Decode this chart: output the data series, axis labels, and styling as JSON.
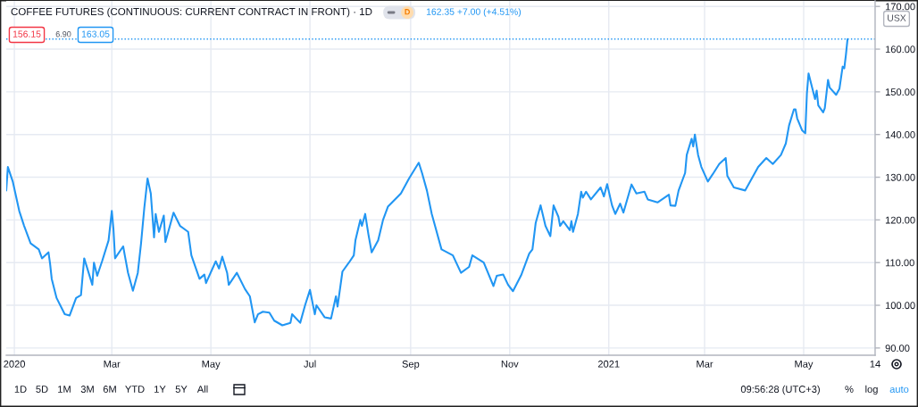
{
  "chart_data": {
    "type": "line",
    "title": "COFFEE FUTURES (CONTINUOUS: CURRENT CONTRACT IN FRONT) · 1D",
    "ylabel": "USX",
    "annotations": [
      "D",
      "162.35 +7.00 (+4.51%)",
      "156.15",
      "6.90",
      "163.05",
      "1D",
      "5D",
      "1M",
      "3M",
      "6M",
      "YTD",
      "1Y",
      "5Y",
      "All",
      "09:56:28 (UTC+3)",
      "%",
      "log",
      "auto"
    ],
    "x": [
      "2019-12-27",
      "2019-12-28",
      "2019-12-31",
      "2020-01-04",
      "2020-01-07",
      "2020-01-11",
      "2020-01-16",
      "2020-01-18",
      "2020-01-22",
      "2020-01-23",
      "2020-01-24",
      "2020-01-27",
      "2020-02-01",
      "2020-02-04",
      "2020-02-08",
      "2020-02-11",
      "2020-02-13",
      "2020-02-18",
      "2020-02-19",
      "2020-02-21",
      "2020-02-24",
      "2020-02-28",
      "2020-03-01",
      "2020-03-02",
      "2020-03-03",
      "2020-03-08",
      "2020-03-09",
      "2020-03-11",
      "2020-03-14",
      "2020-03-17",
      "2020-03-19",
      "2020-03-21",
      "2020-03-23",
      "2020-03-25",
      "2020-03-27",
      "2020-03-28",
      "2020-03-30",
      "2020-04-02",
      "2020-04-03",
      "2020-04-08",
      "2020-04-12",
      "2020-04-17",
      "2020-04-19",
      "2020-04-24",
      "2020-04-27",
      "2020-04-28",
      "2020-05-04",
      "2020-05-06",
      "2020-05-08",
      "2020-05-11",
      "2020-05-12",
      "2020-05-17",
      "2020-05-22",
      "2020-05-25",
      "2020-05-28",
      "2020-05-30",
      "2020-06-02",
      "2020-06-06",
      "2020-06-09",
      "2020-06-14",
      "2020-06-19",
      "2020-06-20",
      "2020-06-25",
      "2020-06-28",
      "2020-07-01",
      "2020-07-04",
      "2020-07-05",
      "2020-07-10",
      "2020-07-14",
      "2020-07-17",
      "2020-07-18",
      "2020-07-21",
      "2020-07-25",
      "2020-07-28",
      "2020-07-29",
      "2020-08-01",
      "2020-08-02",
      "2020-08-04",
      "2020-08-06",
      "2020-08-08",
      "2020-08-12",
      "2020-08-15",
      "2020-08-18",
      "2020-08-26",
      "2020-08-31",
      "2020-09-06",
      "2020-09-08",
      "2020-09-11",
      "2020-09-14",
      "2020-09-20",
      "2020-09-27",
      "2020-10-02",
      "2020-10-07",
      "2020-10-09",
      "2020-10-16",
      "2020-10-22",
      "2020-10-24",
      "2020-10-28",
      "2020-10-31",
      "2020-11-03",
      "2020-11-08",
      "2020-11-13",
      "2020-11-15",
      "2020-11-17",
      "2020-11-20",
      "2020-11-23",
      "2020-11-26",
      "2020-11-28",
      "2020-12-01",
      "2020-12-02",
      "2020-12-04",
      "2020-12-08",
      "2020-12-09",
      "2020-12-10",
      "2020-12-13",
      "2020-12-15",
      "2020-12-16",
      "2020-12-18",
      "2020-12-21",
      "2020-12-27",
      "2020-12-29",
      "2020-12-31",
      "2021-01-03",
      "2021-01-05",
      "2021-01-08",
      "2021-01-10",
      "2021-01-15",
      "2021-01-18",
      "2021-01-23",
      "2021-01-25",
      "2021-01-31",
      "2021-02-07",
      "2021-02-08",
      "2021-02-11",
      "2021-02-13",
      "2021-02-17",
      "2021-02-18",
      "2021-02-21",
      "2021-02-22",
      "2021-02-23",
      "2021-02-25",
      "2021-02-27",
      "2021-03-03",
      "2021-03-06",
      "2021-03-10",
      "2021-03-14",
      "2021-03-15",
      "2021-03-19",
      "2021-03-26",
      "2021-03-28",
      "2021-04-03",
      "2021-04-08",
      "2021-04-12",
      "2021-04-17",
      "2021-04-20",
      "2021-04-22",
      "2021-04-25",
      "2021-04-26",
      "2021-04-27",
      "2021-04-30",
      "2021-05-02",
      "2021-05-03",
      "2021-05-04",
      "2021-05-08",
      "2021-05-09",
      "2021-05-10",
      "2021-05-13",
      "2021-05-14",
      "2021-05-16",
      "2021-05-17",
      "2021-05-21",
      "2021-05-23",
      "2021-05-25",
      "2021-05-26",
      "2021-05-27",
      "2021-05-28"
    ],
    "series": [
      {
        "color": "#2196f3",
        "values": [
          126.9,
          132.4,
          129.0,
          122.1,
          118.6,
          114.5,
          113.1,
          111.0,
          112.4,
          109.7,
          106.2,
          101.7,
          97.9,
          97.6,
          101.7,
          102.4,
          111.0,
          104.8,
          110.0,
          106.9,
          110.3,
          115.2,
          122.1,
          117.9,
          111.0,
          113.8,
          111.7,
          107.6,
          103.4,
          107.6,
          114.5,
          122.8,
          129.7,
          126.2,
          115.9,
          121.4,
          117.2,
          121.0,
          114.8,
          121.7,
          118.6,
          117.2,
          111.7,
          106.2,
          107.2,
          105.2,
          110.3,
          108.6,
          111.4,
          107.6,
          104.8,
          107.6,
          103.8,
          102.1,
          96.0,
          97.9,
          98.5,
          98.3,
          96.4,
          95.3,
          95.9,
          97.9,
          95.9,
          100.0,
          103.6,
          97.9,
          100.0,
          97.2,
          96.9,
          102.1,
          99.7,
          107.9,
          110.0,
          111.7,
          115.2,
          120.0,
          118.6,
          121.4,
          116.6,
          112.4,
          115.2,
          120.0,
          123.1,
          126.2,
          129.7,
          133.4,
          131.0,
          126.9,
          121.4,
          113.1,
          111.7,
          107.6,
          109.0,
          111.7,
          110.0,
          104.5,
          106.9,
          107.2,
          104.8,
          103.3,
          107.0,
          112.1,
          113.1,
          119.3,
          123.4,
          118.6,
          116.2,
          123.4,
          120.7,
          118.6,
          119.7,
          117.6,
          119.7,
          117.2,
          121.4,
          126.6,
          125.2,
          126.6,
          124.8,
          127.6,
          125.5,
          128.4,
          123.4,
          121.4,
          123.8,
          121.7,
          128.3,
          126.2,
          126.6,
          124.8,
          124.1,
          125.9,
          123.4,
          123.3,
          126.9,
          131.0,
          135.2,
          139.0,
          137.2,
          140.0,
          135.2,
          132.4,
          129.0,
          130.7,
          133.1,
          134.5,
          130.3,
          127.6,
          126.9,
          128.3,
          132.4,
          134.5,
          133.1,
          135.2,
          137.9,
          142.1,
          145.9,
          145.9,
          143.8,
          141.0,
          140.3,
          149.7,
          154.3,
          148.3,
          150.3,
          146.8,
          145.2,
          146.2,
          152.8,
          151.0,
          149.3,
          150.7,
          155.9,
          155.5,
          158.6,
          162.35
        ]
      }
    ],
    "xlim": [
      "2019-12-27",
      "2021-06-14"
    ],
    "xticks": [
      {
        "value": "2020-01-01",
        "label": "2020"
      },
      {
        "value": "2020-03-01",
        "label": "Mar"
      },
      {
        "value": "2020-05-01",
        "label": "May"
      },
      {
        "value": "2020-07-01",
        "label": "Jul"
      },
      {
        "value": "2020-09-01",
        "label": "Sep"
      },
      {
        "value": "2020-11-01",
        "label": "Nov"
      },
      {
        "value": "2021-01-01",
        "label": "2021"
      },
      {
        "value": "2021-03-01",
        "label": "Mar"
      },
      {
        "value": "2021-05-01",
        "label": "May"
      },
      {
        "value": "2021-06-14",
        "label": "14"
      }
    ],
    "ylim": [
      88.3,
      171.3
    ],
    "yticks": [
      {
        "value": 90,
        "label": "90.00"
      },
      {
        "value": 100,
        "label": "100.00"
      },
      {
        "value": 110,
        "label": "110.00"
      },
      {
        "value": 120,
        "label": "120.00"
      },
      {
        "value": 130,
        "label": "130.00"
      },
      {
        "value": 140,
        "label": "140.00"
      },
      {
        "value": 150,
        "label": "150.00"
      },
      {
        "value": 160,
        "label": "160.00"
      },
      {
        "value": 170,
        "label": "170.00"
      }
    ],
    "ref_lines": [
      {
        "axis": "y",
        "value": 162.35,
        "color": "#2196f3",
        "line_style": "dotted"
      }
    ],
    "grid": true
  }
}
